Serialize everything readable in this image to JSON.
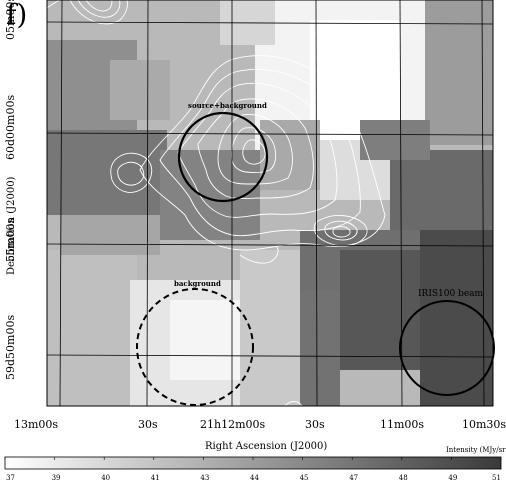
{
  "figure": {
    "panel_label": "f)",
    "axes": {
      "xlabel": "Right Ascension (J2000)",
      "ylabel": "Declination (J2000)",
      "x_ticks": [
        "13m00s",
        "30s",
        "21h12m00s",
        "30s",
        "11m00s",
        "10m30s"
      ],
      "y_ticks": [
        "05m00s",
        "60d00m00s",
        "55m00s",
        "59d50m00s"
      ]
    },
    "regions": {
      "source_label": "source+background",
      "background_label": "background",
      "beam_label": "IRIS100 beam"
    },
    "colorbar": {
      "title": "Intensity (MJy/sr)",
      "ticks": [
        "37",
        "39",
        "40",
        "41",
        "43",
        "44",
        "45",
        "47",
        "48",
        "49",
        "51"
      ],
      "min": 37,
      "max": 51
    },
    "colors": {
      "grid": "#000000",
      "contour": "#ffffff",
      "background": "#ffffff"
    }
  }
}
